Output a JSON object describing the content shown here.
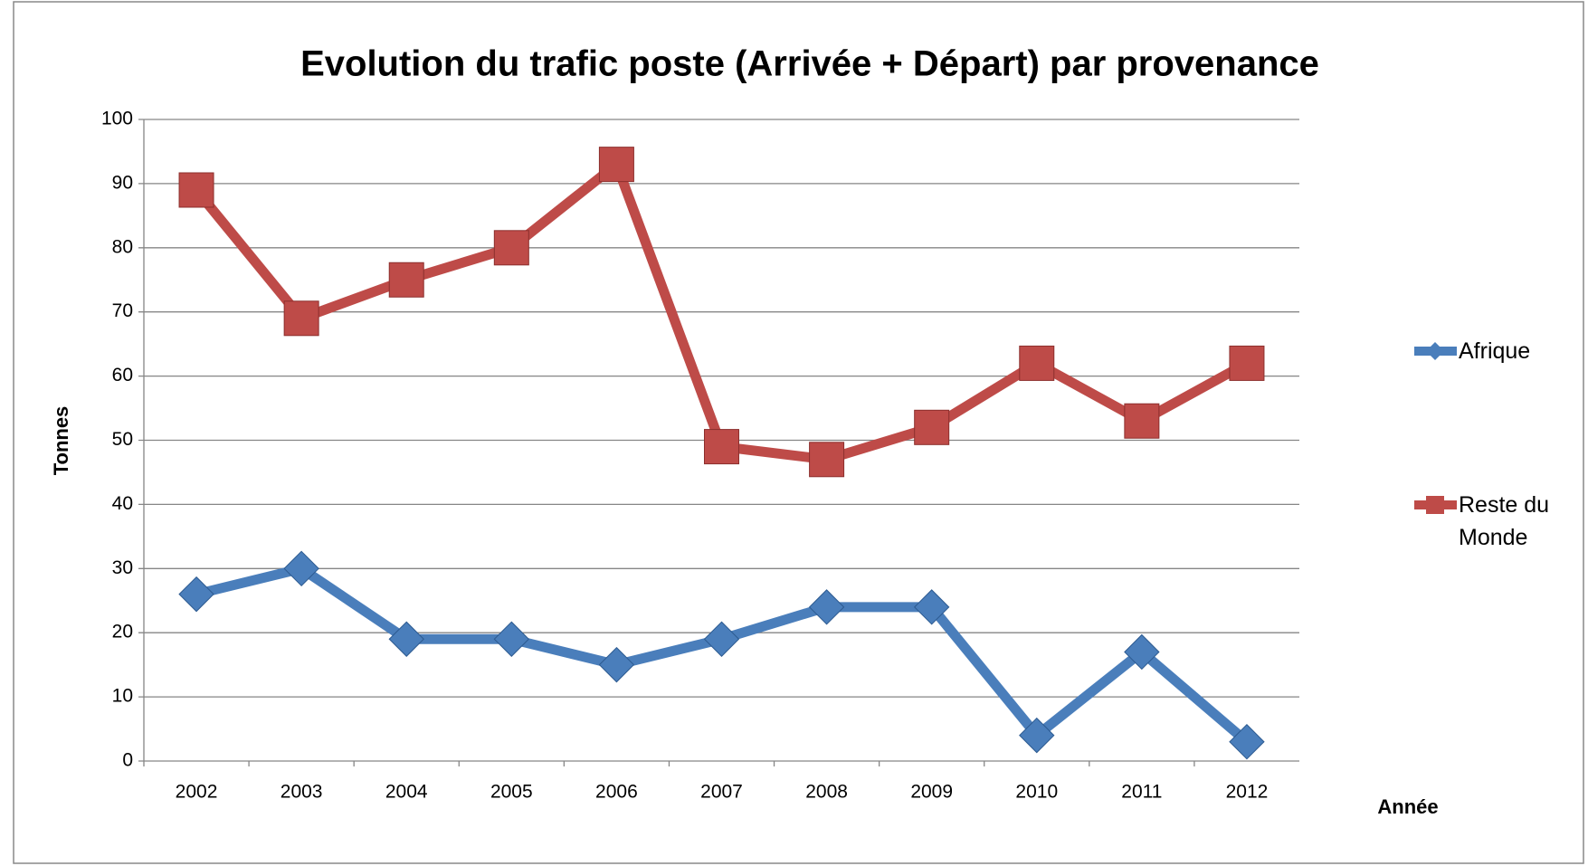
{
  "chart_data": {
    "type": "line",
    "title": "Evolution du trafic poste (Arrivée + Départ) par provenance",
    "x_label": "Année",
    "y_label": "Tonnes",
    "categories": [
      "2002",
      "2003",
      "2004",
      "2005",
      "2006",
      "2007",
      "2008",
      "2009",
      "2010",
      "2011",
      "2012"
    ],
    "series": [
      {
        "name": "Afrique",
        "color": "#4a7ebb",
        "marker": "diamond",
        "values": [
          26,
          30,
          19,
          19,
          15,
          19,
          24,
          24,
          4,
          17,
          3
        ]
      },
      {
        "name": "Reste du Monde",
        "color": "#be4b48",
        "marker": "square",
        "values": [
          89,
          69,
          75,
          80,
          93,
          49,
          47,
          52,
          62,
          53,
          62
        ]
      }
    ],
    "ylim": [
      0,
      100
    ],
    "yticks": [
      0,
      10,
      20,
      30,
      40,
      50,
      60,
      70,
      80,
      90,
      100
    ],
    "grid": true,
    "legend": "right"
  }
}
